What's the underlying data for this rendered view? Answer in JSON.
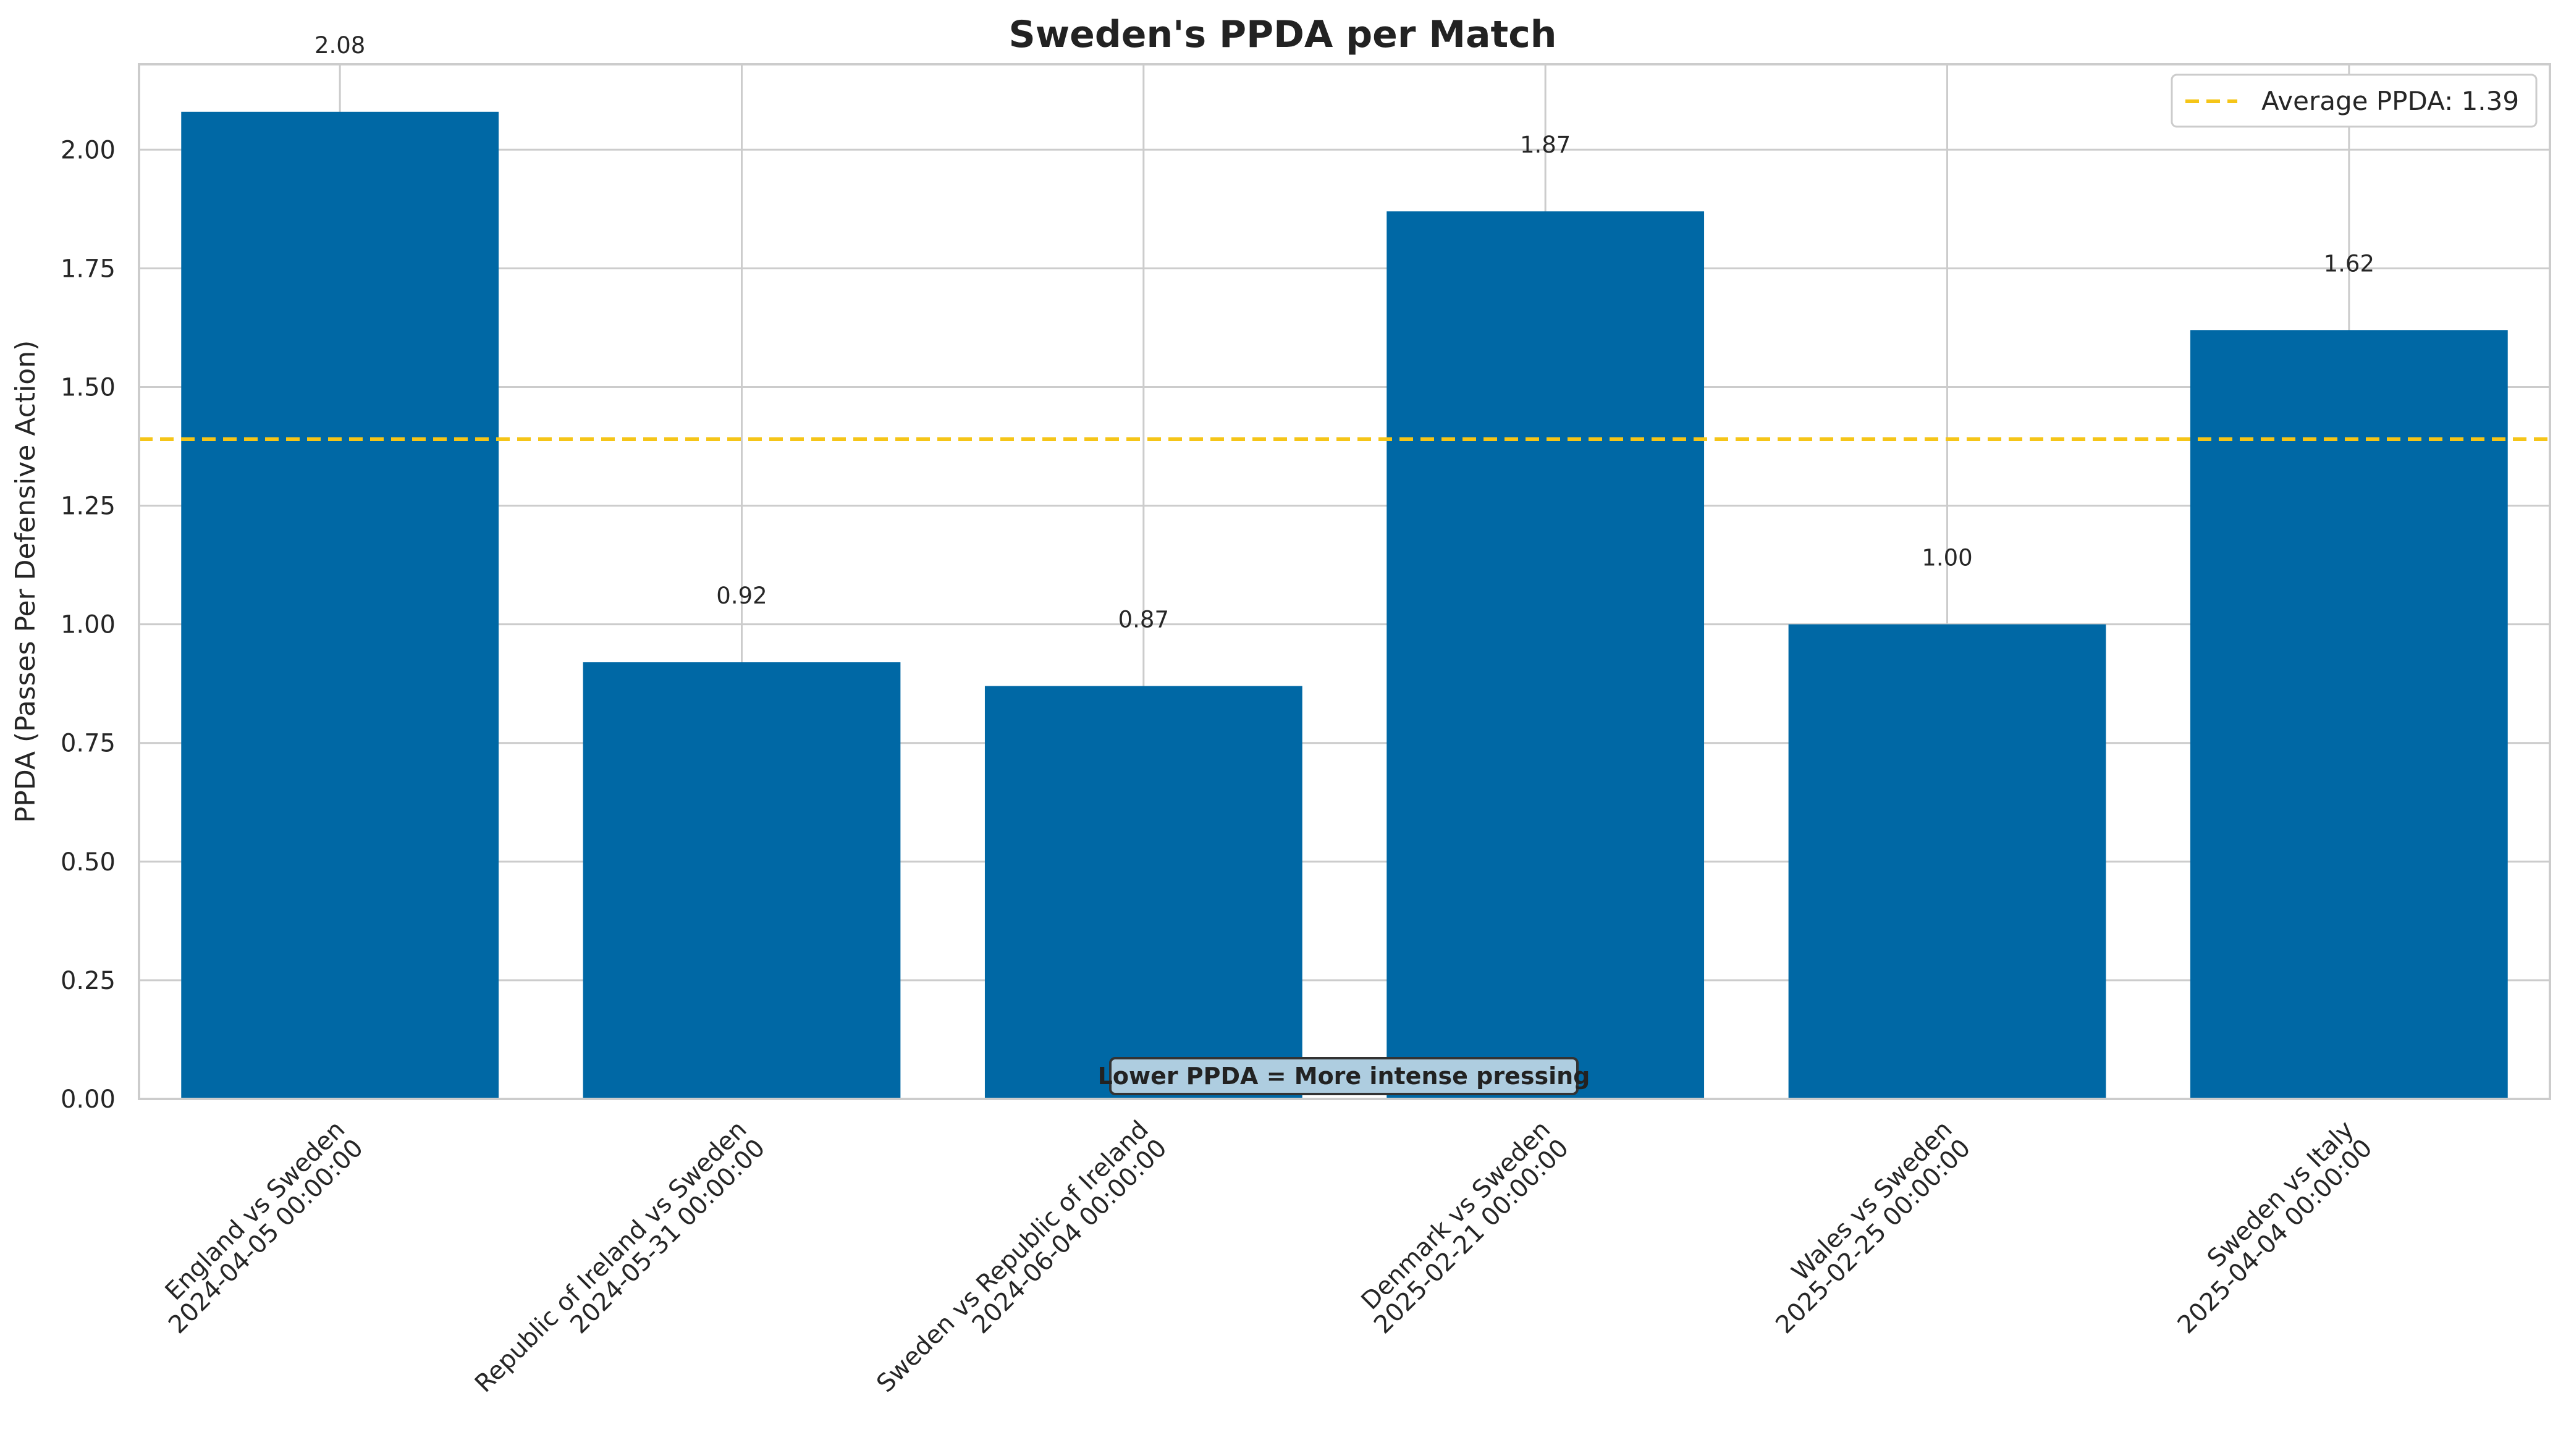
{
  "chart_data": {
    "type": "bar",
    "title": "Sweden's PPDA per Match",
    "xlabel": "",
    "ylabel": "PPDA (Passes Per Defensive Action)",
    "ylim": [
      0,
      2.18
    ],
    "grid": true,
    "yticks": [
      "0.00",
      "0.25",
      "0.50",
      "0.75",
      "1.00",
      "1.25",
      "1.50",
      "1.75",
      "2.00"
    ],
    "categories": [
      [
        "England vs Sweden",
        "2024-04-05 00:00:00"
      ],
      [
        "Republic of Ireland vs Sweden",
        "2024-05-31 00:00:00"
      ],
      [
        "Sweden vs Republic of Ireland",
        "2024-06-04 00:00:00"
      ],
      [
        "Denmark vs Sweden",
        "2025-02-21 00:00:00"
      ],
      [
        "Wales vs Sweden",
        "2025-02-25 00:00:00"
      ],
      [
        "Sweden vs Italy",
        "2025-04-04 00:00:00"
      ]
    ],
    "values": [
      2.08,
      0.92,
      0.87,
      1.87,
      1.0,
      1.62
    ],
    "value_labels": [
      "2.08",
      "0.92",
      "0.87",
      "1.87",
      "1.00",
      "1.62"
    ],
    "bar_color": "#0068a5",
    "average": {
      "value": 1.39,
      "label": "Average PPDA: 1.39",
      "color": "#f5c518",
      "style": "dashed"
    },
    "legend_placement": "top-right",
    "annotation": {
      "text": "Lower PPDA = More intense pressing",
      "placement": "bottom-center",
      "box_color": "#aecde0"
    }
  }
}
